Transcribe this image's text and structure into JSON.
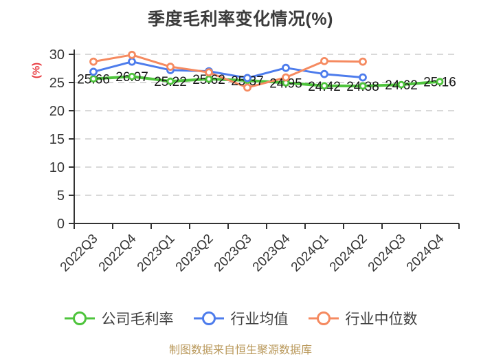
{
  "title": "季度毛利率变化情况(%)",
  "y_axis_name": "(%)",
  "footer_text": "制图数据来自恒生聚源数据库",
  "colors": {
    "title": "#3b3b3b",
    "axis": "#333333",
    "tick_label": "#333333",
    "grid": "#d9d9d9",
    "data_label": "#141414",
    "ylabel": "#e83a3f",
    "legend_text": "#3f3f3f",
    "footer": "#b9985a",
    "background": "#ffffff",
    "marker_fill": "#ffffff"
  },
  "chart_data": {
    "type": "line",
    "title": "季度毛利率变化情况(%)",
    "xlabel": "",
    "ylabel": "(%)",
    "ylim": [
      0,
      30
    ],
    "yticks": [
      0,
      5,
      10,
      15,
      20,
      25,
      30
    ],
    "grid": "horizontal-dashed",
    "legend_position": "bottom",
    "categories": [
      "2022Q3",
      "2022Q4",
      "2023Q1",
      "2023Q2",
      "2023Q3",
      "2023Q4",
      "2024Q1",
      "2024Q2",
      "2024Q3",
      "2024Q4"
    ],
    "series": [
      {
        "key": "company-gross-margin",
        "name": "公司毛利率",
        "color": "#4ec43c",
        "show_labels": true,
        "values": [
          25.66,
          26.07,
          25.22,
          25.62,
          25.37,
          24.95,
          24.42,
          24.38,
          24.62,
          25.16
        ],
        "labels": [
          "25.66",
          "26.07",
          "25.22",
          "25.62",
          "25.37",
          "24.95",
          "24.42",
          "24.38",
          "24.62",
          "25.16"
        ]
      },
      {
        "key": "industry-mean",
        "name": "行业均值",
        "color": "#4d7cec",
        "show_labels": false,
        "values": [
          26.9,
          28.7,
          27.2,
          27.0,
          25.8,
          27.6,
          26.5,
          25.9,
          null,
          null
        ]
      },
      {
        "key": "industry-median",
        "name": "行业中位数",
        "color": "#f58a60",
        "show_labels": false,
        "values": [
          28.7,
          29.9,
          27.8,
          26.8,
          24.1,
          25.9,
          28.8,
          28.7,
          null,
          null
        ]
      }
    ]
  }
}
